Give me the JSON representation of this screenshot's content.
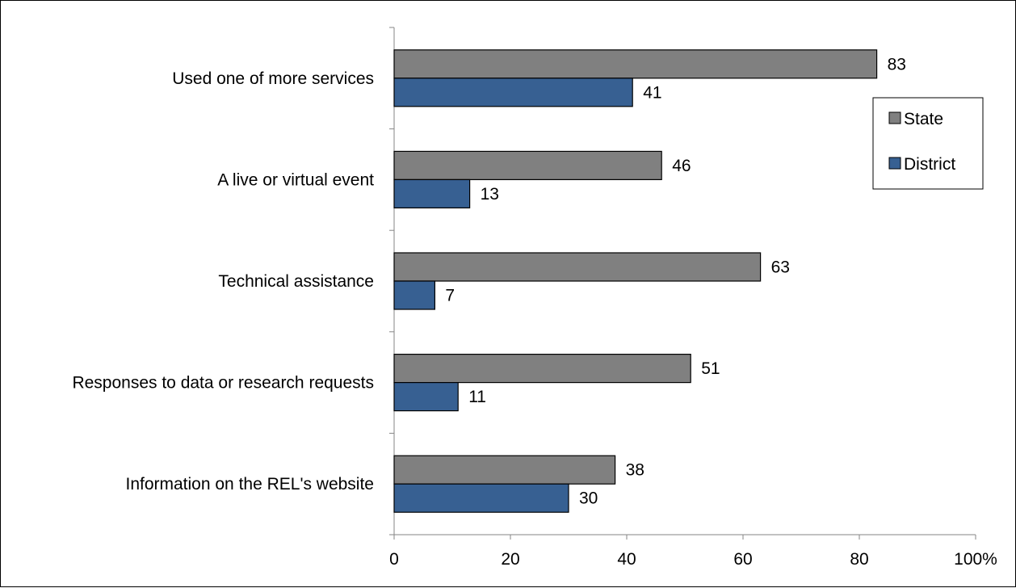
{
  "chart_data": {
    "type": "bar",
    "orientation": "horizontal",
    "title": "",
    "xlabel": "",
    "ylabel": "",
    "categories": [
      "Used one of more services",
      "A live or virtual event",
      "Technical assistance",
      "Responses to data or research requests",
      "Information on the REL's website"
    ],
    "series": [
      {
        "name": "State",
        "color": "#808080",
        "values": [
          83,
          46,
          63,
          51,
          38
        ]
      },
      {
        "name": "District",
        "color": "#376092",
        "values": [
          41,
          13,
          7,
          11,
          30
        ]
      }
    ],
    "xlim": [
      0,
      100
    ],
    "x_ticks": [
      "0",
      "20",
      "40",
      "60",
      "80",
      "100%"
    ],
    "grid": false,
    "legend_position": "right"
  }
}
